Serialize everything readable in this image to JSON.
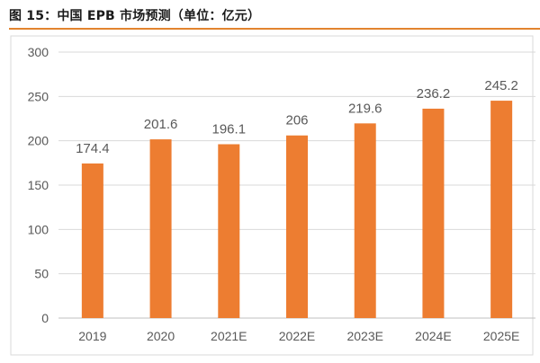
{
  "header": {
    "title": "图 15：中国 EPB 市场预测（单位：亿元）"
  },
  "colors": {
    "bar": "#ed7d31",
    "axis_text": "#595959",
    "gridline": "#d9d9d9",
    "accent_rule": "#e2842e"
  },
  "chart_data": {
    "type": "bar",
    "categories": [
      "2019",
      "2020",
      "2021E",
      "2022E",
      "2023E",
      "2024E",
      "2025E"
    ],
    "values": [
      174.4,
      201.6,
      196.1,
      206,
      219.6,
      236.2,
      245.2
    ],
    "value_labels": [
      "174.4",
      "201.6",
      "196.1",
      "206",
      "219.6",
      "236.2",
      "245.2"
    ],
    "title": "",
    "xlabel": "",
    "ylabel": "",
    "ylim": [
      0,
      300
    ],
    "yticks": [
      0,
      50,
      100,
      150,
      200,
      250,
      300
    ],
    "grid": true,
    "legend": "none"
  }
}
